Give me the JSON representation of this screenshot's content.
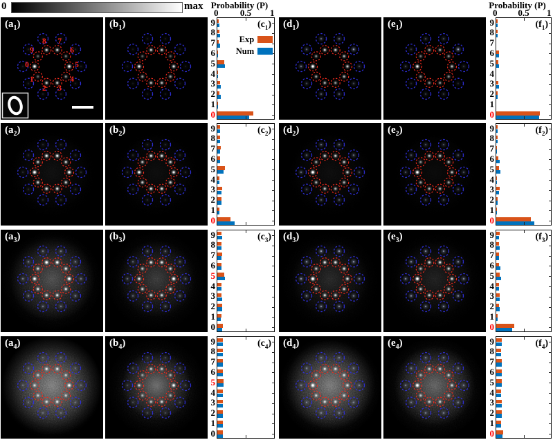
{
  "colorbar": {
    "min_label": "0",
    "max_label": "max",
    "gradient": [
      "#000000",
      "#ffffff"
    ]
  },
  "axis_header": {
    "title": "Probability (P)",
    "tick_labels": [
      "0",
      "0.5",
      "1"
    ],
    "tick_values": [
      0,
      0.5,
      1
    ]
  },
  "legend": {
    "entries": [
      {
        "label": "Exp",
        "color": "#D95319"
      },
      {
        "label": "Num",
        "color": "#0072BD"
      }
    ]
  },
  "colors": {
    "exp": "#D95319",
    "num": "#0072BD",
    "red_ring": "#ef2b1e",
    "blue_ring": "#2f2fd8",
    "red_text": "#ff2619",
    "panel_bg": "#000000",
    "red_axis_label": "#ff0000"
  },
  "image_panels": [
    {
      "label": {
        "letter": "a",
        "sub": "1"
      },
      "row": 1,
      "col": "a",
      "digit_labels": [
        "0",
        "1",
        "2",
        "3",
        "4",
        "5",
        "6",
        "7",
        "8",
        "9"
      ],
      "inset_digit": "0",
      "scalebar": true,
      "haze": 0,
      "hazeR": 55,
      "speckle": 0,
      "spots": {
        "red": [
          0.85,
          0.2,
          0.5,
          0.5,
          0.3,
          0.8,
          0.25,
          0.55,
          0.55,
          0.2
        ],
        "blue": [
          0.08,
          0.08,
          0.08,
          0.08,
          0.08,
          0.08,
          0.08,
          0.08,
          0.08,
          0.08
        ]
      }
    },
    {
      "label": {
        "letter": "b",
        "sub": "1"
      },
      "row": 1,
      "col": "b",
      "haze": 0,
      "hazeR": 55,
      "speckle": 0,
      "spots": {
        "red": [
          0.7,
          0.35,
          0.45,
          0.45,
          0.35,
          0.6,
          0.2,
          0.5,
          0.5,
          0.2
        ],
        "blue": [
          0.06,
          0.06,
          0.06,
          0.06,
          0.06,
          0.06,
          0.06,
          0.06,
          0.06,
          0.06
        ]
      }
    },
    {
      "label": {
        "letter": "d",
        "sub": "1"
      },
      "row": 1,
      "col": "d",
      "haze": 0,
      "hazeR": 55,
      "speckle": 0,
      "spots": {
        "red": [
          0.9,
          0.35,
          0.4,
          0.35,
          0.4,
          0.5,
          0.4,
          0.5,
          0.5,
          0.3
        ],
        "blue": [
          0.35,
          0.2,
          0.25,
          0.25,
          0.2,
          0.2,
          0.5,
          0.3,
          0.3,
          0.3
        ]
      }
    },
    {
      "label": {
        "letter": "e",
        "sub": "1"
      },
      "row": 1,
      "col": "e",
      "haze": 0,
      "hazeR": 55,
      "speckle": 0,
      "spots": {
        "red": [
          0.75,
          0.3,
          0.3,
          0.3,
          0.3,
          0.45,
          0.3,
          0.35,
          0.35,
          0.25
        ],
        "blue": [
          0.2,
          0.1,
          0.15,
          0.15,
          0.1,
          0.15,
          0.55,
          0.2,
          0.2,
          0.15
        ]
      }
    },
    {
      "label": {
        "letter": "a",
        "sub": "2"
      },
      "row": 2,
      "col": "a",
      "haze": 0.06,
      "hazeR": 55,
      "speckle": 0.06,
      "spots": {
        "red": [
          0.95,
          0.5,
          0.6,
          0.6,
          0.5,
          0.85,
          0.5,
          0.7,
          0.7,
          0.45
        ],
        "blue": [
          0.1,
          0.1,
          0.1,
          0.1,
          0.1,
          0.1,
          0.1,
          0.1,
          0.1,
          0.1
        ]
      }
    },
    {
      "label": {
        "letter": "b",
        "sub": "2"
      },
      "row": 2,
      "col": "b",
      "haze": 0.05,
      "hazeR": 55,
      "speckle": 0.05,
      "spots": {
        "red": [
          0.8,
          0.5,
          0.6,
          0.6,
          0.5,
          0.7,
          0.5,
          0.6,
          0.6,
          0.45
        ],
        "blue": [
          0.1,
          0.1,
          0.1,
          0.1,
          0.1,
          0.1,
          0.1,
          0.1,
          0.1,
          0.1
        ]
      }
    },
    {
      "label": {
        "letter": "d",
        "sub": "2"
      },
      "row": 2,
      "col": "d",
      "haze": 0.05,
      "hazeR": 55,
      "speckle": 0.05,
      "spots": {
        "red": [
          0.95,
          0.4,
          0.45,
          0.4,
          0.4,
          0.5,
          0.45,
          0.5,
          0.5,
          0.35
        ],
        "blue": [
          0.3,
          0.2,
          0.25,
          0.25,
          0.2,
          0.2,
          0.3,
          0.3,
          0.3,
          0.25
        ]
      }
    },
    {
      "label": {
        "letter": "e",
        "sub": "2"
      },
      "row": 2,
      "col": "e",
      "haze": 0.04,
      "hazeR": 55,
      "speckle": 0.04,
      "spots": {
        "red": [
          0.9,
          0.35,
          0.4,
          0.4,
          0.35,
          0.45,
          0.4,
          0.45,
          0.45,
          0.3
        ],
        "blue": [
          0.22,
          0.22,
          0.22,
          0.22,
          0.22,
          0.22,
          0.22,
          0.22,
          0.22,
          0.22
        ]
      }
    },
    {
      "label": {
        "letter": "a",
        "sub": "3"
      },
      "row": 3,
      "col": "a",
      "haze": 0.3,
      "hazeR": 62,
      "speckle": 0.3,
      "spots": {
        "red": [
          0.85,
          0.55,
          0.6,
          0.6,
          0.55,
          0.95,
          0.6,
          0.8,
          0.9,
          0.5
        ],
        "blue": [
          0.3,
          0.3,
          0.3,
          0.3,
          0.3,
          0.3,
          0.3,
          0.3,
          0.3,
          0.3
        ]
      }
    },
    {
      "label": {
        "letter": "b",
        "sub": "3"
      },
      "row": 3,
      "col": "b",
      "haze": 0.22,
      "hazeR": 55,
      "speckle": 0.22,
      "spots": {
        "red": [
          0.6,
          0.5,
          0.55,
          0.55,
          0.5,
          0.9,
          0.5,
          0.6,
          0.6,
          0.45
        ],
        "blue": [
          0.25,
          0.25,
          0.25,
          0.25,
          0.25,
          0.25,
          0.25,
          0.25,
          0.25,
          0.25
        ]
      }
    },
    {
      "label": {
        "letter": "d",
        "sub": "3"
      },
      "row": 3,
      "col": "d",
      "haze": 0.15,
      "hazeR": 55,
      "speckle": 0.15,
      "spots": {
        "red": [
          1,
          0.5,
          0.55,
          0.5,
          0.5,
          0.6,
          0.55,
          0.6,
          0.6,
          0.45
        ],
        "blue": [
          0.45,
          0.35,
          0.4,
          0.4,
          0.35,
          0.35,
          0.45,
          0.5,
          0.5,
          0.4
        ]
      }
    },
    {
      "label": {
        "letter": "e",
        "sub": "3"
      },
      "row": 3,
      "col": "e",
      "haze": 0.12,
      "hazeR": 55,
      "speckle": 0.12,
      "spots": {
        "red": [
          1,
          0.45,
          0.5,
          0.5,
          0.45,
          0.55,
          0.5,
          0.55,
          0.55,
          0.4
        ],
        "blue": [
          0.4,
          0.4,
          0.4,
          0.4,
          0.4,
          0.4,
          0.4,
          0.4,
          0.4,
          0.4
        ]
      }
    },
    {
      "label": {
        "letter": "a",
        "sub": "4"
      },
      "row": 4,
      "col": "a",
      "haze": 0.5,
      "hazeR": 72,
      "speckle": 0.55,
      "spots": {
        "red": [
          0.5,
          0.4,
          0.5,
          0.55,
          0.4,
          0.85,
          0.4,
          0.6,
          0.6,
          0.4
        ],
        "blue": [
          0.2,
          0.2,
          0.2,
          0.2,
          0.2,
          0.2,
          0.2,
          0.2,
          0.2,
          0.2
        ]
      }
    },
    {
      "label": {
        "letter": "b",
        "sub": "4"
      },
      "row": 4,
      "col": "b",
      "haze": 0.45,
      "hazeR": 50,
      "speckle": 0.3,
      "spots": {
        "red": [
          0.5,
          0.35,
          0.4,
          0.5,
          0.35,
          0.8,
          0.35,
          0.45,
          0.45,
          0.3
        ],
        "blue": [
          0.15,
          0.15,
          0.15,
          0.15,
          0.15,
          0.15,
          0.15,
          0.15,
          0.15,
          0.15
        ]
      }
    },
    {
      "label": {
        "letter": "d",
        "sub": "4"
      },
      "row": 4,
      "col": "d",
      "haze": 0.48,
      "hazeR": 65,
      "speckle": 0.5,
      "spots": {
        "red": [
          1,
          0.45,
          0.5,
          0.5,
          0.45,
          0.55,
          0.5,
          0.55,
          0.55,
          0.4
        ],
        "blue": [
          0.3,
          0.3,
          0.3,
          0.3,
          0.3,
          0.3,
          0.3,
          0.3,
          0.3,
          0.3
        ]
      }
    },
    {
      "label": {
        "letter": "e",
        "sub": "4"
      },
      "row": 4,
      "col": "e",
      "haze": 0.38,
      "hazeR": 58,
      "speckle": 0.4,
      "spots": {
        "red": [
          1,
          0.4,
          0.45,
          0.45,
          0.4,
          0.5,
          0.45,
          0.5,
          0.5,
          0.35
        ],
        "blue": [
          0.3,
          0.3,
          0.3,
          0.3,
          0.3,
          0.3,
          0.3,
          0.3,
          0.3,
          0.3
        ]
      }
    }
  ],
  "chart_data": [
    {
      "id": "c1",
      "type": "bar",
      "orientation": "horizontal",
      "label": {
        "letter": "c",
        "sub": "1"
      },
      "row": 1,
      "col": "c",
      "show_header": true,
      "show_legend": true,
      "red_category": "0",
      "xlim": [
        0,
        1
      ],
      "categories": [
        "0",
        "1",
        "2",
        "3",
        "4",
        "5",
        "6",
        "7",
        "8",
        "9"
      ],
      "series": [
        {
          "name": "Exp",
          "values": [
            0.62,
            0.01,
            0.04,
            0.05,
            0.01,
            0.12,
            0.01,
            0.02,
            0.03,
            0.02
          ]
        },
        {
          "name": "Num",
          "values": [
            0.55,
            0.01,
            0.06,
            0.06,
            0.01,
            0.13,
            0.01,
            0.05,
            0.05,
            0.04
          ]
        }
      ]
    },
    {
      "id": "c2",
      "type": "bar",
      "orientation": "horizontal",
      "label": {
        "letter": "c",
        "sub": "2"
      },
      "row": 2,
      "col": "c",
      "show_header": false,
      "show_legend": false,
      "red_category": "0",
      "xlim": [
        0,
        1
      ],
      "categories": [
        "0",
        "1",
        "2",
        "3",
        "4",
        "5",
        "6",
        "7",
        "8",
        "9"
      ],
      "series": [
        {
          "name": "Exp",
          "values": [
            0.22,
            0.04,
            0.07,
            0.08,
            0.04,
            0.13,
            0.05,
            0.06,
            0.05,
            0.05
          ]
        },
        {
          "name": "Num",
          "values": [
            0.3,
            0.03,
            0.07,
            0.07,
            0.04,
            0.11,
            0.05,
            0.05,
            0.05,
            0.05
          ]
        }
      ]
    },
    {
      "id": "c3",
      "type": "bar",
      "orientation": "horizontal",
      "label": {
        "letter": "c",
        "sub": "3"
      },
      "row": 3,
      "col": "c",
      "show_header": false,
      "show_legend": false,
      "red_category": "5",
      "xlim": [
        0,
        1
      ],
      "categories": [
        "0",
        "1",
        "2",
        "3",
        "4",
        "5",
        "6",
        "7",
        "8",
        "9"
      ],
      "series": [
        {
          "name": "Exp",
          "values": [
            0.09,
            0.07,
            0.08,
            0.07,
            0.07,
            0.12,
            0.07,
            0.08,
            0.07,
            0.07
          ]
        },
        {
          "name": "Num",
          "values": [
            0.08,
            0.06,
            0.08,
            0.08,
            0.07,
            0.13,
            0.07,
            0.07,
            0.07,
            0.08
          ]
        }
      ]
    },
    {
      "id": "c4",
      "type": "bar",
      "orientation": "horizontal",
      "label": {
        "letter": "c",
        "sub": "4"
      },
      "row": 4,
      "col": "c",
      "show_header": false,
      "show_legend": false,
      "red_category": "5",
      "xlim": [
        0,
        1
      ],
      "categories": [
        "0",
        "1",
        "2",
        "3",
        "4",
        "5",
        "6",
        "7",
        "8",
        "9"
      ],
      "series": [
        {
          "name": "Exp",
          "values": [
            0.1,
            0.1,
            0.1,
            0.1,
            0.1,
            0.11,
            0.1,
            0.1,
            0.1,
            0.1
          ]
        },
        {
          "name": "Num",
          "values": [
            0.1,
            0.1,
            0.1,
            0.1,
            0.1,
            0.11,
            0.1,
            0.1,
            0.1,
            0.1
          ]
        }
      ]
    },
    {
      "id": "f1",
      "type": "bar",
      "orientation": "horizontal",
      "label": {
        "letter": "f",
        "sub": "1"
      },
      "row": 1,
      "col": "f",
      "show_header": true,
      "show_legend": false,
      "red_category": "0",
      "xlim": [
        0,
        1
      ],
      "categories": [
        "0",
        "1",
        "2",
        "3",
        "4",
        "5",
        "6",
        "7",
        "8",
        "9"
      ],
      "series": [
        {
          "name": "Exp",
          "values": [
            0.78,
            0.005,
            0.02,
            0.04,
            0.005,
            0.04,
            0.05,
            0.005,
            0.02,
            0.02
          ]
        },
        {
          "name": "Num",
          "values": [
            0.76,
            0.005,
            0.02,
            0.05,
            0.005,
            0.05,
            0.05,
            0.005,
            0.03,
            0.02
          ]
        }
      ]
    },
    {
      "id": "f2",
      "type": "bar",
      "orientation": "horizontal",
      "label": {
        "letter": "f",
        "sub": "2"
      },
      "row": 2,
      "col": "f",
      "show_header": false,
      "show_legend": false,
      "red_category": "0",
      "xlim": [
        0,
        1
      ],
      "categories": [
        "0",
        "1",
        "2",
        "3",
        "4",
        "5",
        "6",
        "7",
        "8",
        "9"
      ],
      "series": [
        {
          "name": "Exp",
          "values": [
            0.62,
            0.01,
            0.03,
            0.06,
            0.01,
            0.05,
            0.04,
            0.01,
            0.02,
            0.02
          ]
        },
        {
          "name": "Num",
          "values": [
            0.68,
            0.01,
            0.03,
            0.05,
            0.01,
            0.07,
            0.06,
            0.01,
            0.03,
            0.02
          ]
        }
      ]
    },
    {
      "id": "f3",
      "type": "bar",
      "orientation": "horizontal",
      "label": {
        "letter": "f",
        "sub": "3"
      },
      "row": 3,
      "col": "f",
      "show_header": false,
      "show_legend": false,
      "red_category": "0",
      "xlim": [
        0,
        1
      ],
      "categories": [
        "0",
        "1",
        "2",
        "3",
        "4",
        "5",
        "6",
        "7",
        "8",
        "9"
      ],
      "series": [
        {
          "name": "Exp",
          "values": [
            0.32,
            0.02,
            0.05,
            0.06,
            0.05,
            0.06,
            0.05,
            0.05,
            0.05,
            0.06
          ]
        },
        {
          "name": "Num",
          "values": [
            0.28,
            0.02,
            0.06,
            0.06,
            0.05,
            0.08,
            0.07,
            0.05,
            0.06,
            0.05
          ]
        }
      ]
    },
    {
      "id": "f4",
      "type": "bar",
      "orientation": "horizontal",
      "label": {
        "letter": "f",
        "sub": "4"
      },
      "row": 4,
      "col": "f",
      "show_header": false,
      "show_legend": false,
      "red_category": "0",
      "xlim": [
        0,
        1
      ],
      "categories": [
        "0",
        "1",
        "2",
        "3",
        "4",
        "5",
        "6",
        "7",
        "8",
        "9"
      ],
      "series": [
        {
          "name": "Exp",
          "values": [
            0.12,
            0.09,
            0.1,
            0.1,
            0.09,
            0.1,
            0.1,
            0.1,
            0.09,
            0.1
          ]
        },
        {
          "name": "Num",
          "values": [
            0.11,
            0.09,
            0.1,
            0.1,
            0.09,
            0.1,
            0.1,
            0.1,
            0.09,
            0.1
          ]
        }
      ]
    }
  ]
}
